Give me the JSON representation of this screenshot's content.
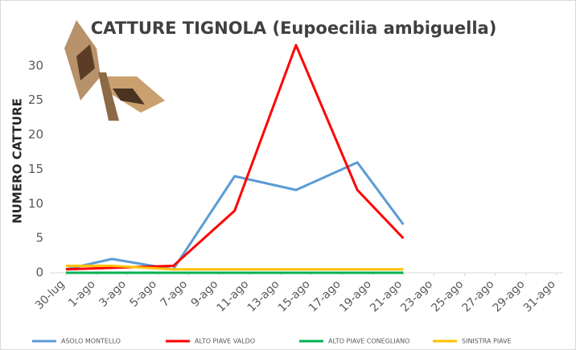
{
  "chart_data": {
    "type": "line",
    "title": "CATTURE TIGNOLA (Eupoecilia ambiguella)",
    "y_label": "NUMERO CATTURE",
    "xlim": [
      0,
      32
    ],
    "xticks": [
      {
        "value": 0,
        "label": "30-lug"
      },
      {
        "value": 2,
        "label": "1-ago"
      },
      {
        "value": 4,
        "label": "3-ago"
      },
      {
        "value": 6,
        "label": "5-ago"
      },
      {
        "value": 8,
        "label": "7-ago"
      },
      {
        "value": 10,
        "label": "9-ago"
      },
      {
        "value": 12,
        "label": "11-ago"
      },
      {
        "value": 14,
        "label": "13-ago"
      },
      {
        "value": 16,
        "label": "15-ago"
      },
      {
        "value": 18,
        "label": "17-ago"
      },
      {
        "value": 20,
        "label": "19-ago"
      },
      {
        "value": 22,
        "label": "21-ago"
      },
      {
        "value": 24,
        "label": "23-ago"
      },
      {
        "value": 26,
        "label": "25-ago"
      },
      {
        "value": 28,
        "label": "27-ago"
      },
      {
        "value": 30,
        "label": "29-ago"
      },
      {
        "value": 32,
        "label": "31-ago"
      }
    ],
    "ylim": [
      0,
      35
    ],
    "yticks": [
      0,
      5,
      10,
      15,
      20,
      25,
      30
    ],
    "series": [
      {
        "name": "ASOLO MONTELLO",
        "color": "#5b9bd5",
        "x": [
          0,
          3,
          7,
          11,
          15,
          19,
          22
        ],
        "values": [
          0.5,
          2,
          0.5,
          14,
          12,
          16,
          7
        ]
      },
      {
        "name": "ALTO PIAVE VALDO",
        "color": "#ff0000",
        "x": [
          0,
          7,
          11,
          15,
          19,
          22
        ],
        "values": [
          0.5,
          1,
          9,
          33,
          12,
          5
        ]
      },
      {
        "name": "ALTO PIAVE CONEGLIANO",
        "color": "#00b050",
        "x": [
          0,
          3,
          7,
          11,
          15,
          19,
          22
        ],
        "values": [
          0,
          0,
          0,
          0,
          0,
          0,
          0
        ]
      },
      {
        "name": "SINISTRA PIAVE",
        "color": "#ffc000",
        "x": [
          0,
          3,
          7,
          11,
          15,
          19,
          22
        ],
        "values": [
          1,
          1,
          0.5,
          0.5,
          0.5,
          0.5,
          0.5
        ]
      }
    ]
  }
}
